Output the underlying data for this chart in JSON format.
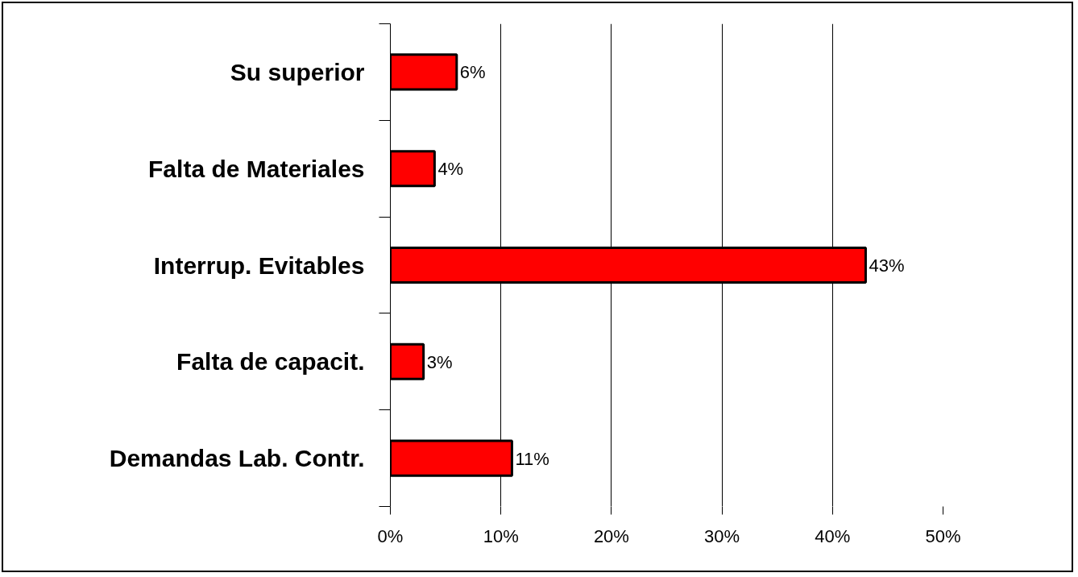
{
  "chart_data": {
    "type": "bar",
    "orientation": "horizontal",
    "categories": [
      "Su superior",
      "Falta de Materiales",
      "Interrup. Evitables",
      "Falta de capacit.",
      "Demandas Lab. Contr."
    ],
    "values": [
      6,
      4,
      43,
      3,
      11
    ],
    "value_labels": [
      "6%",
      "4%",
      "43%",
      "3%",
      "11%"
    ],
    "color": "#ff0000",
    "xlim": [
      0,
      50
    ],
    "xticks": [
      {
        "value": 0,
        "label": "0%"
      },
      {
        "value": 10,
        "label": "10%"
      },
      {
        "value": 20,
        "label": "20%"
      },
      {
        "value": 30,
        "label": "30%"
      },
      {
        "value": 40,
        "label": "40%"
      },
      {
        "value": 50,
        "label": "50%"
      }
    ],
    "grid": "x"
  }
}
